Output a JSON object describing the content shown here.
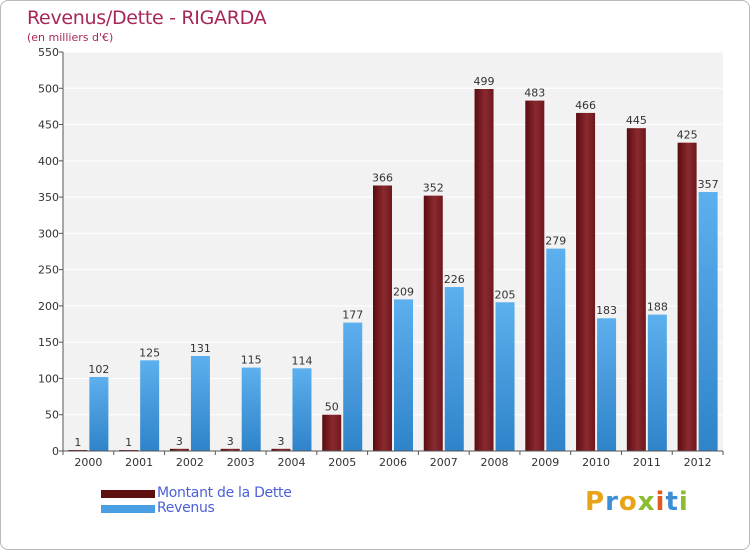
{
  "header": {
    "title": "Revenus/Dette - RIGARDA",
    "subtitle": "(en milliers d'€)"
  },
  "chart_data": {
    "type": "bar",
    "categories": [
      "2000",
      "2001",
      "2002",
      "2003",
      "2004",
      "2005",
      "2006",
      "2007",
      "2008",
      "2009",
      "2010",
      "2011",
      "2012"
    ],
    "series": [
      {
        "name": "Montant de la Dette",
        "color": "#7a1c22",
        "values": [
          1,
          1,
          3,
          3,
          3,
          50,
          366,
          352,
          499,
          483,
          466,
          445,
          425
        ]
      },
      {
        "name": "Revenus",
        "color": "#4a9ee3",
        "values": [
          102,
          125,
          131,
          115,
          114,
          177,
          209,
          226,
          205,
          279,
          183,
          188,
          357
        ]
      }
    ],
    "ylim": [
      0,
      550
    ],
    "yticks": [
      0,
      50,
      100,
      150,
      200,
      250,
      300,
      350,
      400,
      450,
      500,
      550
    ],
    "grid": true,
    "legend_position": "bottom-left"
  },
  "legend": {
    "items": [
      {
        "label": "Montant de la Dette",
        "color": "#5e0f10"
      },
      {
        "label": "Revenus",
        "color": "#4a9ee3"
      }
    ]
  },
  "logo": {
    "letters": [
      "P",
      "r",
      "o",
      "x",
      "i",
      "t",
      "i"
    ],
    "colors": [
      "#e8a318",
      "#3c8fd6",
      "#e8a318",
      "#8bbd2e",
      "#e05a1f",
      "#3c8fd6",
      "#8bbd2e"
    ]
  }
}
